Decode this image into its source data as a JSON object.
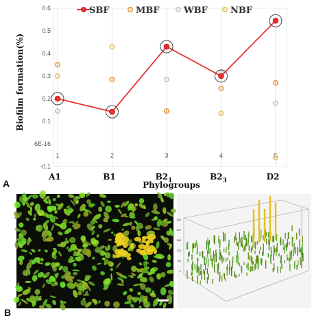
{
  "figure": {
    "panel_a_label": "A",
    "panel_b_label": "B"
  },
  "chart_data": {
    "type": "line",
    "ylabel": "Biofilm formation(%)",
    "xlabel": "Phylogroups",
    "ylim": [
      -0.1,
      0.6
    ],
    "xlim": [
      1,
      5
    ],
    "y_ticks": [
      "0.6",
      "0.5",
      "0.4",
      "0.3",
      "0.2",
      "0.1",
      "6E-16",
      "-0.1"
    ],
    "y_tick_values": [
      0.6,
      0.5,
      0.4,
      0.3,
      0.2,
      0.1,
      0,
      -0.1
    ],
    "x_ticks": [
      "1",
      "2",
      "3",
      "4",
      "5"
    ],
    "x_tick_values": [
      1,
      2,
      3,
      4,
      5
    ],
    "categories": [
      {
        "main": "A1",
        "sub": ""
      },
      {
        "main": "B1",
        "sub": ""
      },
      {
        "main": "B2",
        "sub": "1"
      },
      {
        "main": "B2",
        "sub": "3"
      },
      {
        "main": "D2",
        "sub": ""
      }
    ],
    "grid": "vertical",
    "legend_position": "top",
    "series": [
      {
        "name": "SBF",
        "style": "line-marker",
        "color": "#e8312f",
        "x": [
          1,
          2,
          3,
          4,
          5
        ],
        "values": [
          0.2,
          0.142,
          0.43,
          0.3,
          0.545
        ],
        "circled": true
      },
      {
        "name": "MBF",
        "style": "ring",
        "color": "#e8a35a",
        "x": [
          1,
          2,
          3,
          4,
          5
        ],
        "values": [
          0.35,
          0.285,
          0.145,
          0.245,
          0.27
        ]
      },
      {
        "name": "WBF",
        "style": "ring",
        "color": "#c8c8c8",
        "x": [
          1,
          2,
          3,
          4,
          5
        ],
        "values": [
          0.145,
          0.142,
          0.285,
          0.315,
          0.18
        ]
      },
      {
        "name": "NBF",
        "style": "ring",
        "color": "#e9c96a",
        "x": [
          1,
          2,
          3,
          4,
          5
        ],
        "values": [
          0.3,
          0.43,
          0.145,
          0.135,
          -0.06
        ]
      }
    ]
  },
  "panel_b": {
    "scale_bar": "",
    "z_ticks": [
      "250",
      "200",
      "150",
      "100",
      "50",
      "0"
    ]
  }
}
